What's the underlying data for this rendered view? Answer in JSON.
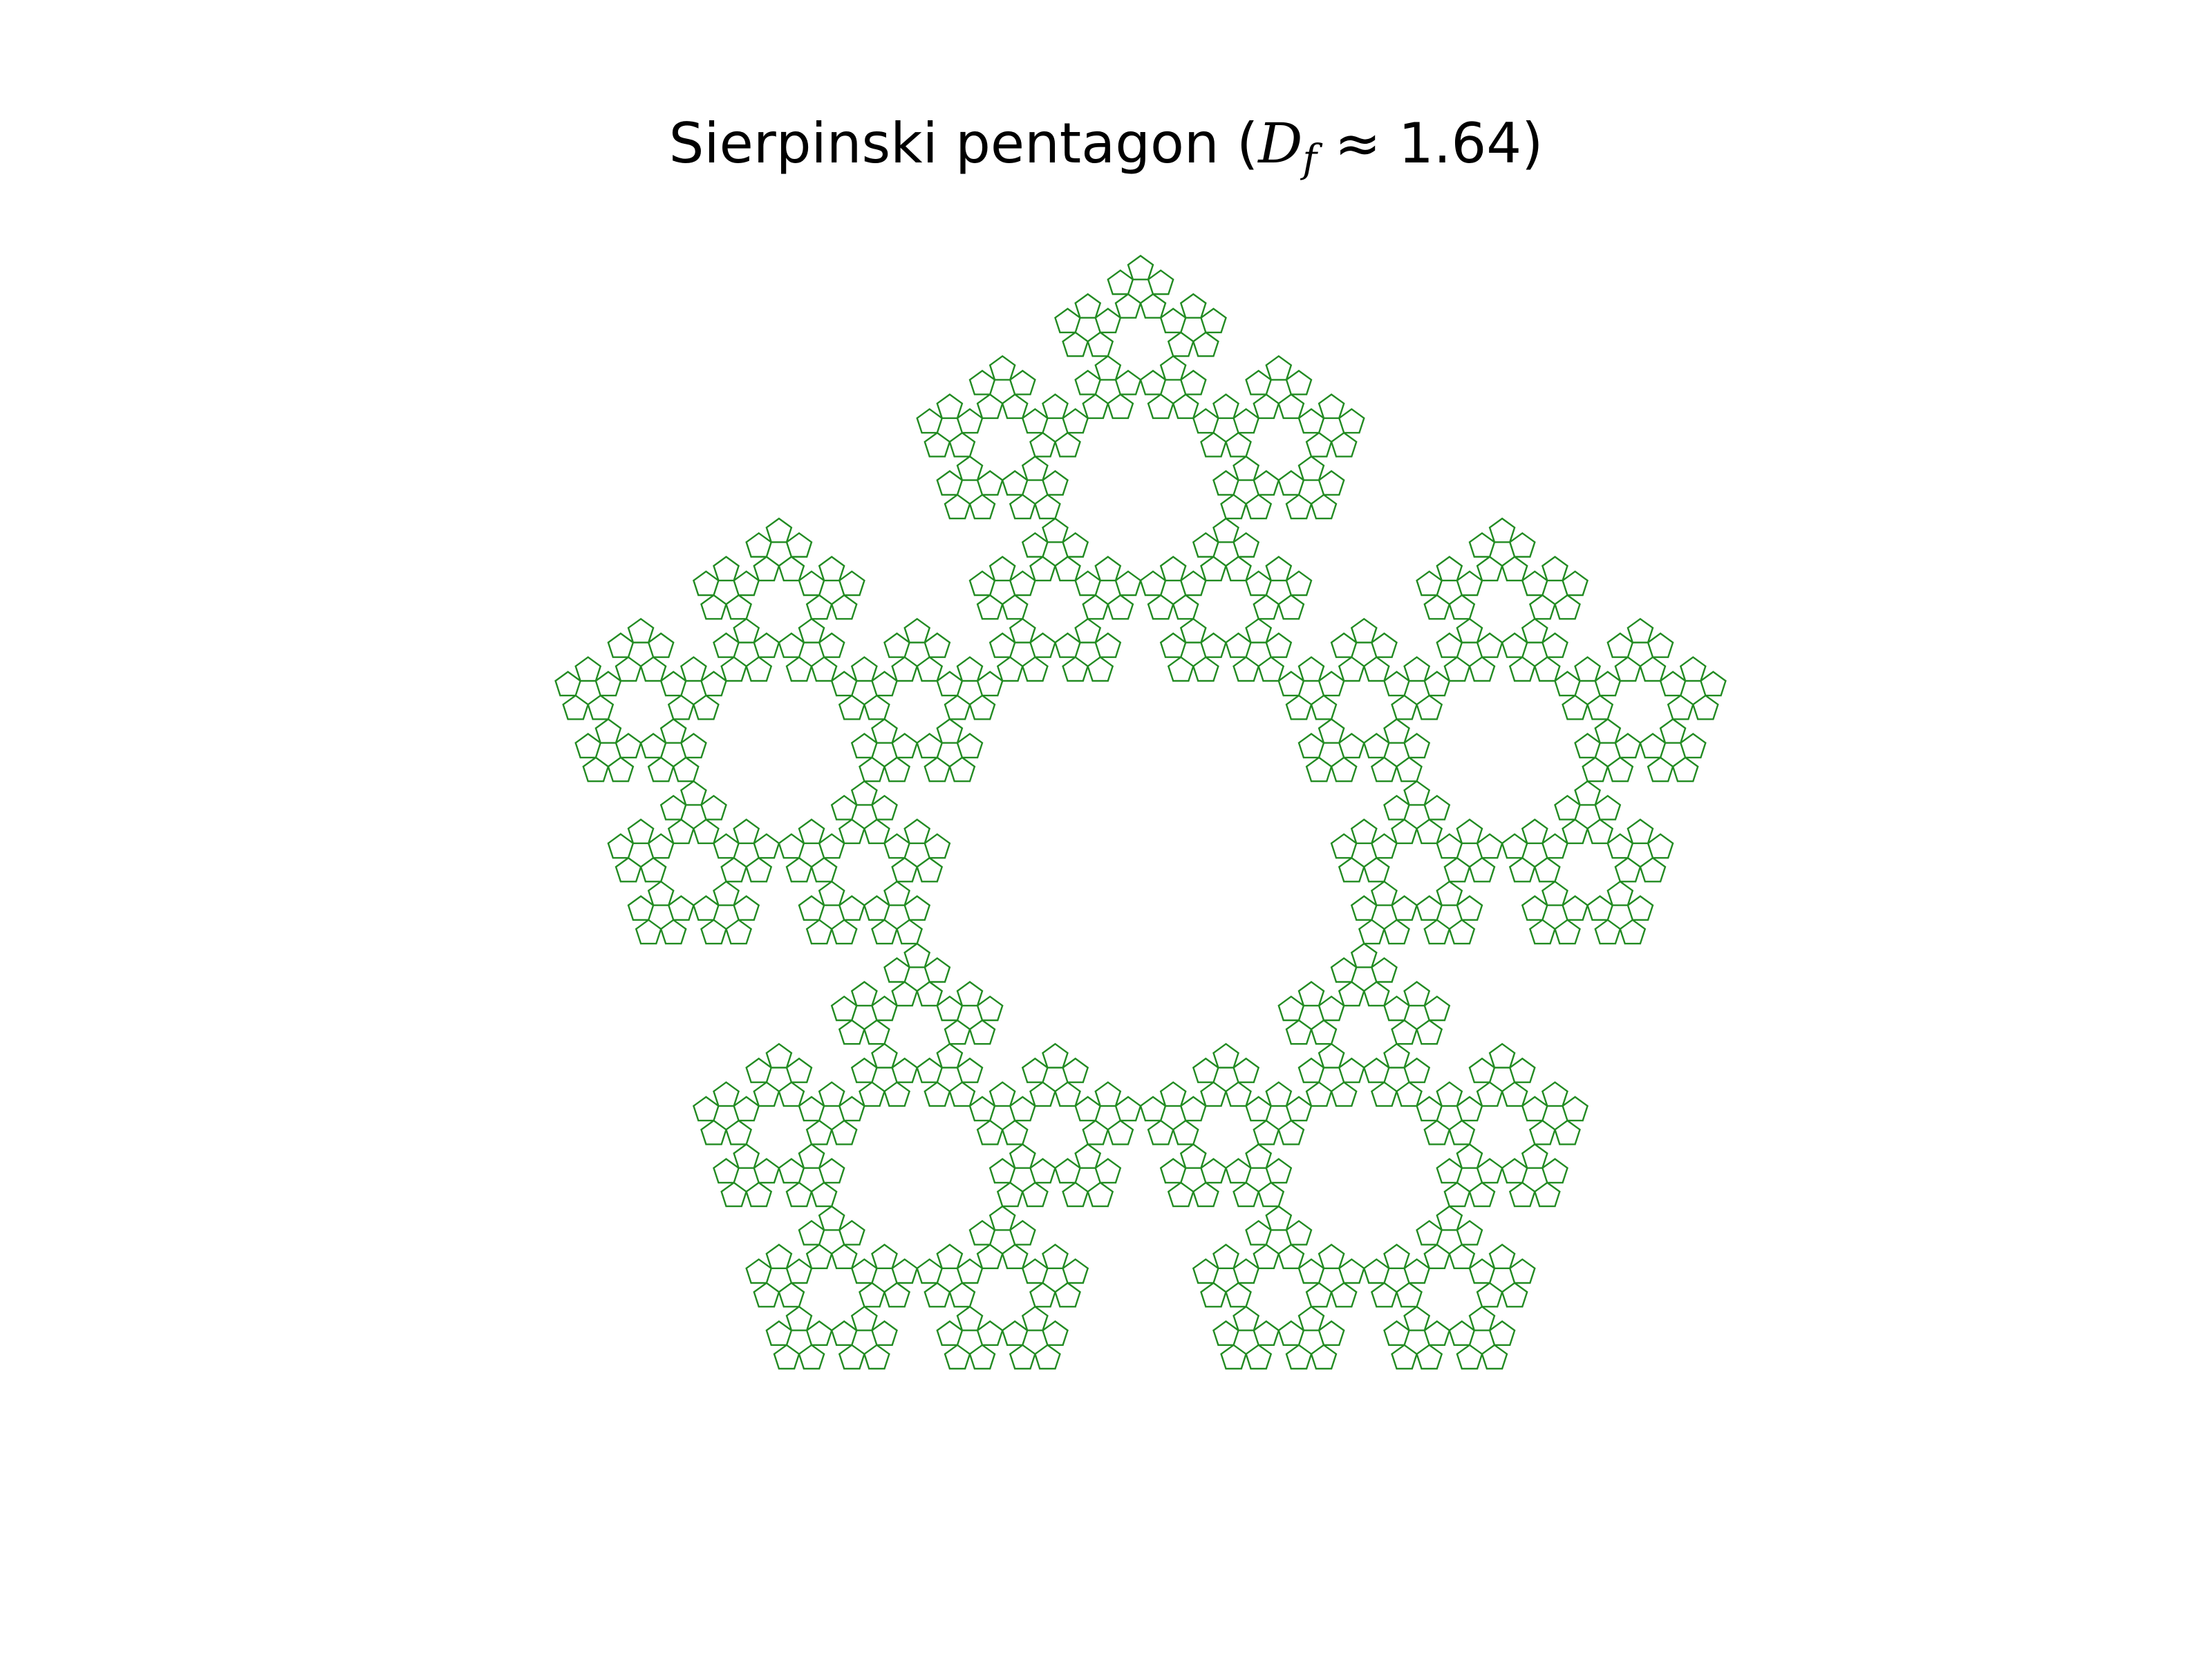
{
  "figure": {
    "title_prefix": "Sierpinski pentagon (",
    "title_symbol": "D",
    "title_subscript": "f",
    "title_suffix": " ≈ 1.64)"
  },
  "fractal": {
    "name": "Sierpinski pentagon",
    "fractal_dimension": 1.64,
    "stroke_color": "#228B22",
    "background_color": "#ffffff",
    "depth": 4
  }
}
